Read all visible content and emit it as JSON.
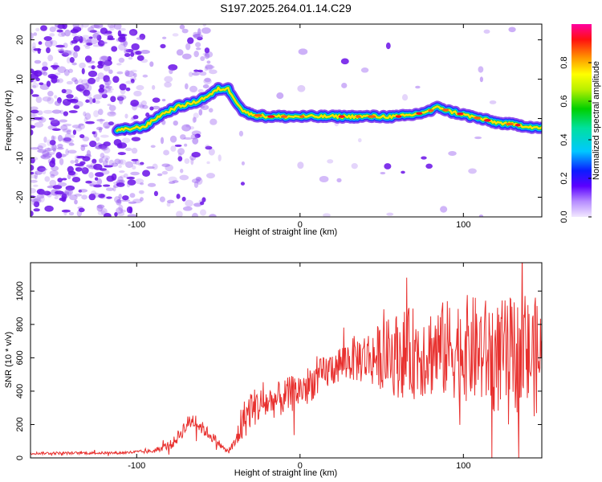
{
  "title": "S197.2025.264.01.14.C29",
  "chart_data": [
    {
      "type": "heatmap",
      "xlabel": "Height of straight line (km)",
      "ylabel": "Frequency (Hz)",
      "xlim": [
        -165,
        148
      ],
      "ylim": [
        -25,
        24
      ],
      "xticks": [
        -100,
        0,
        100
      ],
      "xtick_labels": [
        "-100",
        "0",
        "100"
      ],
      "yticks": [
        -20,
        -10,
        0,
        10,
        20
      ],
      "ytick_labels": [
        "-20",
        "-10",
        "0",
        "10",
        "20"
      ],
      "ridge": {
        "description_points_x": [
          -110,
          -95,
          -85,
          -75,
          -65,
          -55,
          -50,
          -44,
          -40,
          -35,
          -30,
          -20,
          -10,
          0,
          10,
          20,
          30,
          40,
          50,
          60,
          70,
          80,
          85,
          90,
          100,
          110,
          120,
          130,
          140,
          148
        ],
        "description_points_y": [
          -3,
          -2,
          1,
          3,
          4,
          6,
          7.5,
          7.5,
          5,
          2,
          1,
          0.5,
          0.5,
          0.5,
          0.5,
          0.5,
          0.5,
          0.5,
          0.5,
          0.5,
          1,
          2,
          3,
          2,
          1,
          0,
          -1,
          -1.5,
          -2,
          -2.5
        ]
      },
      "colorbar": {
        "label": "Normalized spectral amplitude",
        "range": [
          0,
          1
        ],
        "ticks": [
          0.0,
          0.2,
          0.4,
          0.6,
          0.8
        ],
        "tick_labels": [
          "0.0",
          "0.2",
          "0.4",
          "0.6",
          "0.8"
        ]
      }
    },
    {
      "type": "line",
      "xlabel": "Height of straight line (km)",
      "ylabel": "SNR (10 * v/v)",
      "xlim": [
        -165,
        148
      ],
      "ylim": [
        0,
        1170
      ],
      "xticks": [
        -100,
        0,
        100
      ],
      "xtick_labels": [
        "-100",
        "0",
        "100"
      ],
      "yticks": [
        0,
        200,
        400,
        600,
        800,
        1000
      ],
      "ytick_labels": [
        "0",
        "200",
        "400",
        "600",
        "800",
        "1000"
      ],
      "series": [
        {
          "name": "SNR",
          "color": "#e8302e",
          "envelope_x": [
            -165,
            -110,
            -90,
            -78,
            -70,
            -66,
            -60,
            -52,
            -45,
            -40,
            -36,
            -30,
            -20,
            -10,
            0,
            10,
            20,
            30,
            40,
            50,
            60,
            70,
            80,
            90,
            100,
            110,
            120,
            130,
            140,
            148
          ],
          "envelope_y": [
            28,
            30,
            40,
            85,
            190,
            230,
            180,
            110,
            40,
            80,
            200,
            300,
            330,
            360,
            410,
            470,
            540,
            590,
            600,
            610,
            620,
            630,
            640,
            650,
            660,
            640,
            600,
            620,
            610,
            600
          ],
          "noise_amplitude": [
            8,
            8,
            12,
            30,
            50,
            50,
            40,
            30,
            10,
            40,
            120,
            120,
            100,
            110,
            110,
            110,
            110,
            130,
            160,
            200,
            260,
            280,
            280,
            300,
            320,
            330,
            340,
            350,
            360,
            360
          ]
        }
      ]
    }
  ],
  "colors": {
    "line": "#e8302e",
    "noise": "#9a60f0"
  }
}
